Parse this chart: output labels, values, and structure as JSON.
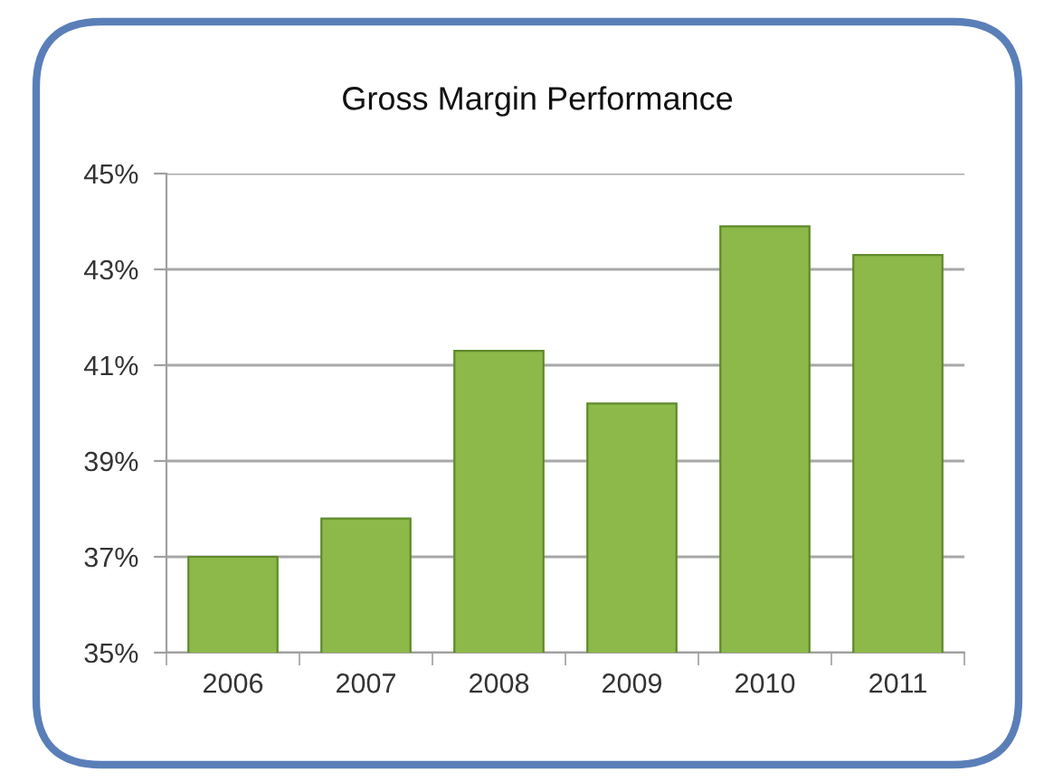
{
  "chart_data": {
    "type": "bar",
    "title": "Gross Margin Performance",
    "categories": [
      "2006",
      "2007",
      "2008",
      "2009",
      "2010",
      "2011"
    ],
    "values": [
      37.0,
      37.8,
      41.3,
      40.2,
      43.9,
      43.3
    ],
    "color": "#8db84a",
    "ylim": [
      35,
      45
    ],
    "yticks": [
      {
        "value": 35,
        "label": "35%"
      },
      {
        "value": 37,
        "label": "37%"
      },
      {
        "value": 39,
        "label": "39%"
      },
      {
        "value": 41,
        "label": "41%"
      },
      {
        "value": 43,
        "label": "43%"
      },
      {
        "value": 45,
        "label": "45%"
      }
    ],
    "grid": "y"
  }
}
